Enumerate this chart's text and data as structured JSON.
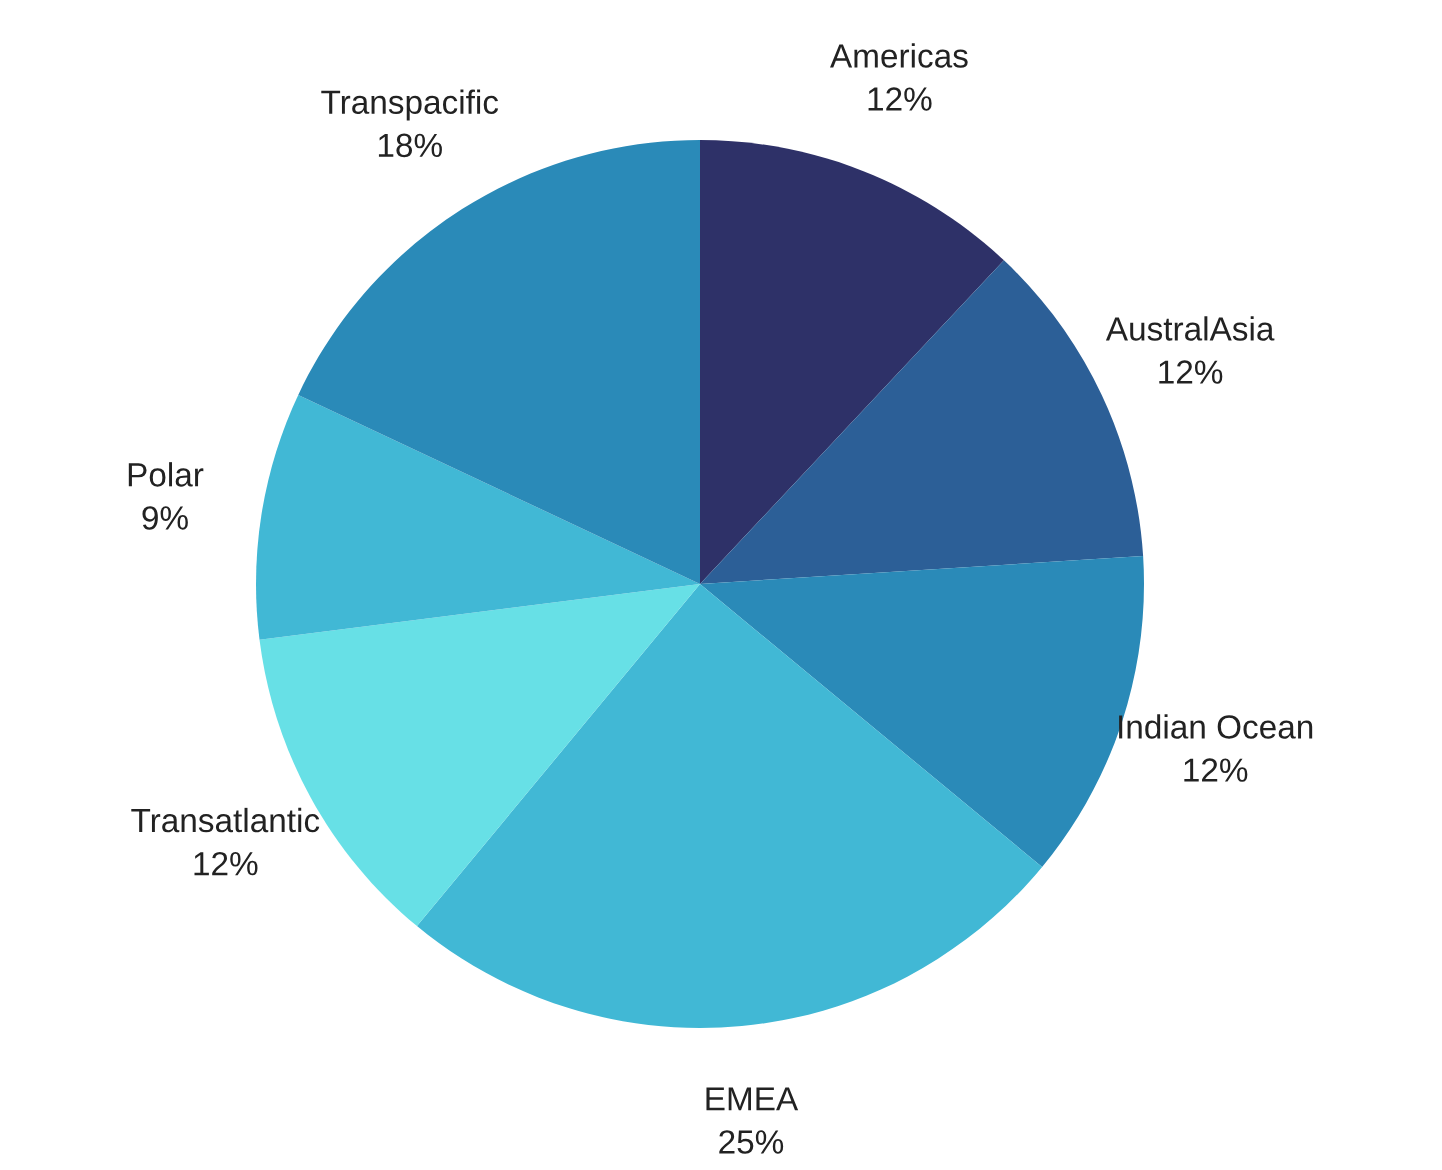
{
  "chart_data": {
    "type": "pie",
    "categories": [
      "Americas",
      "AustralAsia",
      "Indian Ocean",
      "EMEA",
      "Transatlantic",
      "Polar",
      "Transpacific"
    ],
    "values": [
      12,
      12,
      12,
      25,
      12,
      9,
      18
    ],
    "value_labels": [
      "12%",
      "12%",
      "12%",
      "25%",
      "12%",
      "9%",
      "18%"
    ],
    "colors": [
      "#2e3168",
      "#2c5f97",
      "#2a8ab8",
      "#41b8d5",
      "#67e0e6",
      "#41b8d5",
      "#2a8ab8"
    ],
    "legend": false
  }
}
